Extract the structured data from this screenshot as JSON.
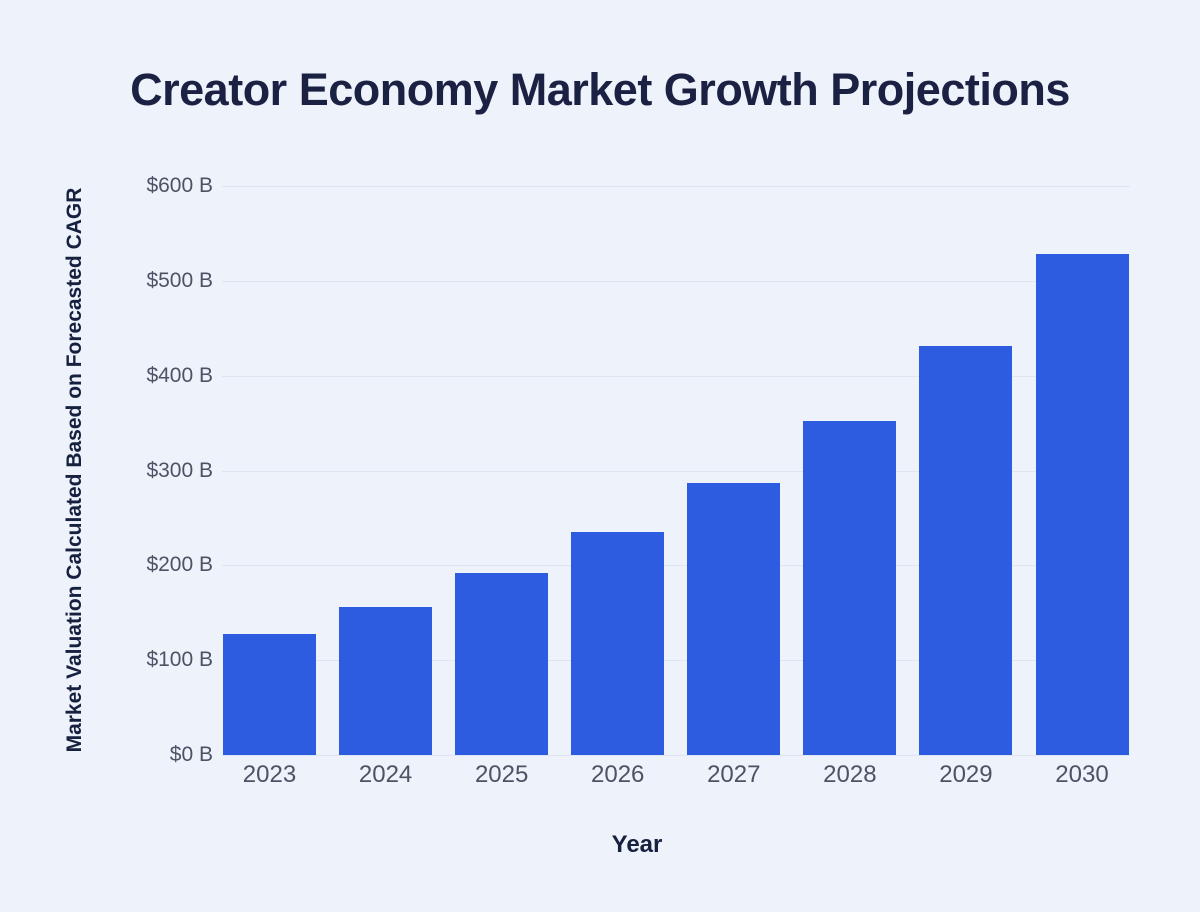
{
  "page": {
    "title": "Creator Economy Market Growth Projections"
  },
  "colors": {
    "background": "#eef2fa",
    "bar": "#2e5ce0",
    "title_text": "#1a2143",
    "axis_title_text": "#16203f",
    "tick_text": "#4b5364",
    "gridline": "#dfe5f0"
  },
  "chart_data": {
    "type": "bar",
    "title": "Creator Economy Market Growth Projections",
    "xlabel": "Year",
    "ylabel": "Market Valuation Calculated Based on Forecasted CAGR",
    "categories": [
      "2023",
      "2024",
      "2025",
      "2026",
      "2027",
      "2028",
      "2029",
      "2030"
    ],
    "values": [
      128,
      156,
      192,
      235,
      287,
      352,
      431,
      528
    ],
    "ylim": [
      0,
      600
    ],
    "ytick_step": 100,
    "yticks": [
      {
        "value": 0,
        "label": "$0 B"
      },
      {
        "value": 100,
        "label": "$100 B"
      },
      {
        "value": 200,
        "label": "$200 B"
      },
      {
        "value": 300,
        "label": "$300 B"
      },
      {
        "value": 400,
        "label": "$400 B"
      },
      {
        "value": 500,
        "label": "$500 B"
      },
      {
        "value": 600,
        "label": "$600 B"
      }
    ],
    "grid": true,
    "legend": false
  }
}
